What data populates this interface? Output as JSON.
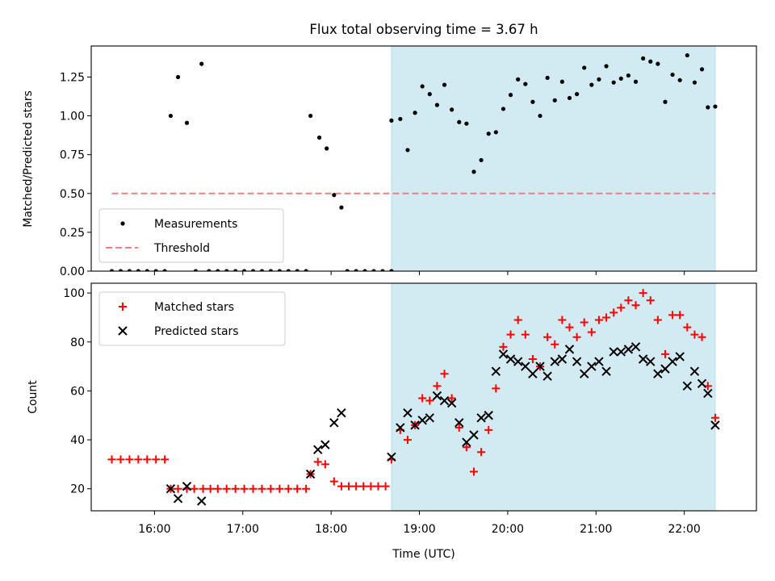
{
  "title": "Flux total observing time = 3.67 h",
  "chart_data": [
    {
      "type": "scatter",
      "ylabel": "Matched/Predicted stars",
      "xlabel": "",
      "xlim": [
        "15:17",
        "22:49"
      ],
      "ylim": [
        0,
        1.45
      ],
      "yticks": [
        "0.00",
        "0.25",
        "0.50",
        "0.75",
        "1.00",
        "1.25"
      ],
      "x_ticks_shown": false,
      "legend": {
        "placement": "lower-left",
        "entries": [
          "Measurements",
          "Threshold"
        ]
      },
      "shaded_span": {
        "from": "18:41",
        "to": "22:21",
        "color": "#add8e6"
      },
      "threshold": {
        "name": "Threshold",
        "value": 0.5,
        "from": "15:31",
        "to": "22:21",
        "color": "#f08080"
      },
      "series": [
        {
          "name": "Measurements",
          "color": "#000000",
          "marker": "dot",
          "points": [
            [
              "15:31",
              0
            ],
            [
              "15:37",
              0
            ],
            [
              "15:43",
              0
            ],
            [
              "15:49",
              0
            ],
            [
              "15:55",
              0
            ],
            [
              "16:01",
              0
            ],
            [
              "16:07",
              0
            ],
            [
              "16:11",
              1.0
            ],
            [
              "16:16",
              1.25
            ],
            [
              "16:22",
              0.955
            ],
            [
              "16:28",
              0
            ],
            [
              "16:32",
              1.335
            ],
            [
              "16:37",
              0
            ],
            [
              "16:43",
              0
            ],
            [
              "16:49",
              0
            ],
            [
              "16:55",
              0
            ],
            [
              "17:01",
              0
            ],
            [
              "17:07",
              0
            ],
            [
              "17:13",
              0
            ],
            [
              "17:19",
              0
            ],
            [
              "17:25",
              0
            ],
            [
              "17:31",
              0
            ],
            [
              "17:37",
              0
            ],
            [
              "17:43",
              0
            ],
            [
              "17:46",
              1.0
            ],
            [
              "17:52",
              0.86
            ],
            [
              "17:57",
              0.79
            ],
            [
              "18:02",
              0.49
            ],
            [
              "18:07",
              0.41
            ],
            [
              "18:11",
              0
            ],
            [
              "18:17",
              0
            ],
            [
              "18:23",
              0
            ],
            [
              "18:29",
              0
            ],
            [
              "18:35",
              0
            ],
            [
              "18:41",
              0
            ],
            [
              "18:41",
              0.97
            ],
            [
              "18:47",
              0.98
            ],
            [
              "18:52",
              0.78
            ],
            [
              "18:57",
              1.02
            ],
            [
              "19:02",
              1.19
            ],
            [
              "19:07",
              1.14
            ],
            [
              "19:12",
              1.07
            ],
            [
              "19:17",
              1.2
            ],
            [
              "19:22",
              1.04
            ],
            [
              "19:27",
              0.96
            ],
            [
              "19:32",
              0.95
            ],
            [
              "19:37",
              0.64
            ],
            [
              "19:42",
              0.715
            ],
            [
              "19:47",
              0.885
            ],
            [
              "19:52",
              0.895
            ],
            [
              "19:57",
              1.045
            ],
            [
              "20:02",
              1.135
            ],
            [
              "20:07",
              1.235
            ],
            [
              "20:12",
              1.205
            ],
            [
              "20:17",
              1.09
            ],
            [
              "20:22",
              1.0
            ],
            [
              "20:27",
              1.245
            ],
            [
              "20:32",
              1.1
            ],
            [
              "20:37",
              1.22
            ],
            [
              "20:42",
              1.115
            ],
            [
              "20:47",
              1.14
            ],
            [
              "20:52",
              1.31
            ],
            [
              "20:57",
              1.2
            ],
            [
              "21:02",
              1.235
            ],
            [
              "21:07",
              1.32
            ],
            [
              "21:12",
              1.215
            ],
            [
              "21:17",
              1.24
            ],
            [
              "21:22",
              1.26
            ],
            [
              "21:27",
              1.22
            ],
            [
              "21:32",
              1.37
            ],
            [
              "21:37",
              1.35
            ],
            [
              "21:42",
              1.335
            ],
            [
              "21:47",
              1.09
            ],
            [
              "21:52",
              1.265
            ],
            [
              "21:57",
              1.23
            ],
            [
              "22:02",
              1.39
            ],
            [
              "22:07",
              1.215
            ],
            [
              "22:12",
              1.3
            ],
            [
              "22:16",
              1.055
            ],
            [
              "22:21",
              1.06
            ]
          ]
        }
      ]
    },
    {
      "type": "scatter",
      "ylabel": "Count",
      "xlabel": "Time (UTC)",
      "xlim": [
        "15:17",
        "22:49"
      ],
      "ylim": [
        11,
        104
      ],
      "yticks": [
        "20",
        "40",
        "60",
        "80",
        "100"
      ],
      "xticks": [
        "16:00",
        "17:00",
        "18:00",
        "19:00",
        "20:00",
        "21:00",
        "22:00"
      ],
      "legend": {
        "placement": "top-left",
        "entries": [
          "Matched stars",
          "Predicted stars"
        ]
      },
      "shaded_span": {
        "from": "18:41",
        "to": "22:21",
        "color": "#add8e6"
      },
      "series": [
        {
          "name": "Matched stars",
          "color": "#ff0000",
          "marker": "plus",
          "points": [
            [
              "15:31",
              32
            ],
            [
              "15:37",
              32
            ],
            [
              "15:43",
              32
            ],
            [
              "15:49",
              32
            ],
            [
              "15:55",
              32
            ],
            [
              "16:01",
              32
            ],
            [
              "16:07",
              32
            ],
            [
              "16:11",
              20
            ],
            [
              "16:16",
              20
            ],
            [
              "16:22",
              20
            ],
            [
              "16:27",
              20
            ],
            [
              "16:33",
              20
            ],
            [
              "16:38",
              20
            ],
            [
              "16:43",
              20
            ],
            [
              "16:49",
              20
            ],
            [
              "16:55",
              20
            ],
            [
              "17:01",
              20
            ],
            [
              "17:07",
              20
            ],
            [
              "17:13",
              20
            ],
            [
              "17:19",
              20
            ],
            [
              "17:25",
              20
            ],
            [
              "17:31",
              20
            ],
            [
              "17:37",
              20
            ],
            [
              "17:43",
              20
            ],
            [
              "17:46",
              26
            ],
            [
              "17:51",
              31
            ],
            [
              "17:56",
              30
            ],
            [
              "18:02",
              23
            ],
            [
              "18:07",
              21
            ],
            [
              "18:12",
              21
            ],
            [
              "18:17",
              21
            ],
            [
              "18:22",
              21
            ],
            [
              "18:27",
              21
            ],
            [
              "18:32",
              21
            ],
            [
              "18:37",
              21
            ],
            [
              "18:41",
              32
            ],
            [
              "18:47",
              44
            ],
            [
              "18:52",
              40
            ],
            [
              "18:57",
              46
            ],
            [
              "19:02",
              57
            ],
            [
              "19:07",
              56
            ],
            [
              "19:12",
              62
            ],
            [
              "19:17",
              67
            ],
            [
              "19:22",
              57
            ],
            [
              "19:27",
              45
            ],
            [
              "19:32",
              37
            ],
            [
              "19:37",
              27
            ],
            [
              "19:42",
              35
            ],
            [
              "19:47",
              44
            ],
            [
              "19:52",
              61
            ],
            [
              "19:57",
              78
            ],
            [
              "20:02",
              83
            ],
            [
              "20:07",
              89
            ],
            [
              "20:12",
              83
            ],
            [
              "20:17",
              73
            ],
            [
              "20:22",
              70
            ],
            [
              "20:27",
              82
            ],
            [
              "20:32",
              79
            ],
            [
              "20:37",
              89
            ],
            [
              "20:42",
              86
            ],
            [
              "20:47",
              82
            ],
            [
              "20:52",
              88
            ],
            [
              "20:57",
              84
            ],
            [
              "21:02",
              89
            ],
            [
              "21:07",
              90
            ],
            [
              "21:12",
              92
            ],
            [
              "21:17",
              94
            ],
            [
              "21:22",
              97
            ],
            [
              "21:27",
              95
            ],
            [
              "21:32",
              100
            ],
            [
              "21:37",
              97
            ],
            [
              "21:42",
              89
            ],
            [
              "21:47",
              75
            ],
            [
              "21:52",
              91
            ],
            [
              "21:57",
              91
            ],
            [
              "22:02",
              86
            ],
            [
              "22:07",
              83
            ],
            [
              "22:12",
              82
            ],
            [
              "22:16",
              62
            ],
            [
              "22:21",
              49
            ]
          ]
        },
        {
          "name": "Predicted stars",
          "color": "#000000",
          "marker": "x",
          "points": [
            [
              "16:11",
              20
            ],
            [
              "16:16",
              16
            ],
            [
              "16:22",
              21
            ],
            [
              "16:32",
              15
            ],
            [
              "17:46",
              26
            ],
            [
              "17:51",
              36
            ],
            [
              "17:56",
              38
            ],
            [
              "18:02",
              47
            ],
            [
              "18:07",
              51
            ],
            [
              "18:41",
              33
            ],
            [
              "18:47",
              45
            ],
            [
              "18:52",
              51
            ],
            [
              "18:57",
              46
            ],
            [
              "19:02",
              48
            ],
            [
              "19:07",
              49
            ],
            [
              "19:12",
              58
            ],
            [
              "19:17",
              56
            ],
            [
              "19:22",
              55
            ],
            [
              "19:27",
              47
            ],
            [
              "19:32",
              39
            ],
            [
              "19:37",
              42
            ],
            [
              "19:42",
              49
            ],
            [
              "19:47",
              50
            ],
            [
              "19:52",
              68
            ],
            [
              "19:57",
              75
            ],
            [
              "20:02",
              73
            ],
            [
              "20:07",
              72
            ],
            [
              "20:12",
              70
            ],
            [
              "20:17",
              67
            ],
            [
              "20:22",
              70
            ],
            [
              "20:27",
              66
            ],
            [
              "20:32",
              72
            ],
            [
              "20:37",
              73
            ],
            [
              "20:42",
              77
            ],
            [
              "20:47",
              72
            ],
            [
              "20:52",
              67
            ],
            [
              "20:57",
              70
            ],
            [
              "21:02",
              72
            ],
            [
              "21:07",
              68
            ],
            [
              "21:12",
              76
            ],
            [
              "21:17",
              76
            ],
            [
              "21:22",
              77
            ],
            [
              "21:27",
              78
            ],
            [
              "21:32",
              73
            ],
            [
              "21:37",
              72
            ],
            [
              "21:42",
              67
            ],
            [
              "21:47",
              69
            ],
            [
              "21:52",
              72
            ],
            [
              "21:57",
              74
            ],
            [
              "22:02",
              62
            ],
            [
              "22:07",
              68
            ],
            [
              "22:12",
              63
            ],
            [
              "22:16",
              59
            ],
            [
              "22:21",
              46
            ]
          ]
        }
      ]
    }
  ]
}
